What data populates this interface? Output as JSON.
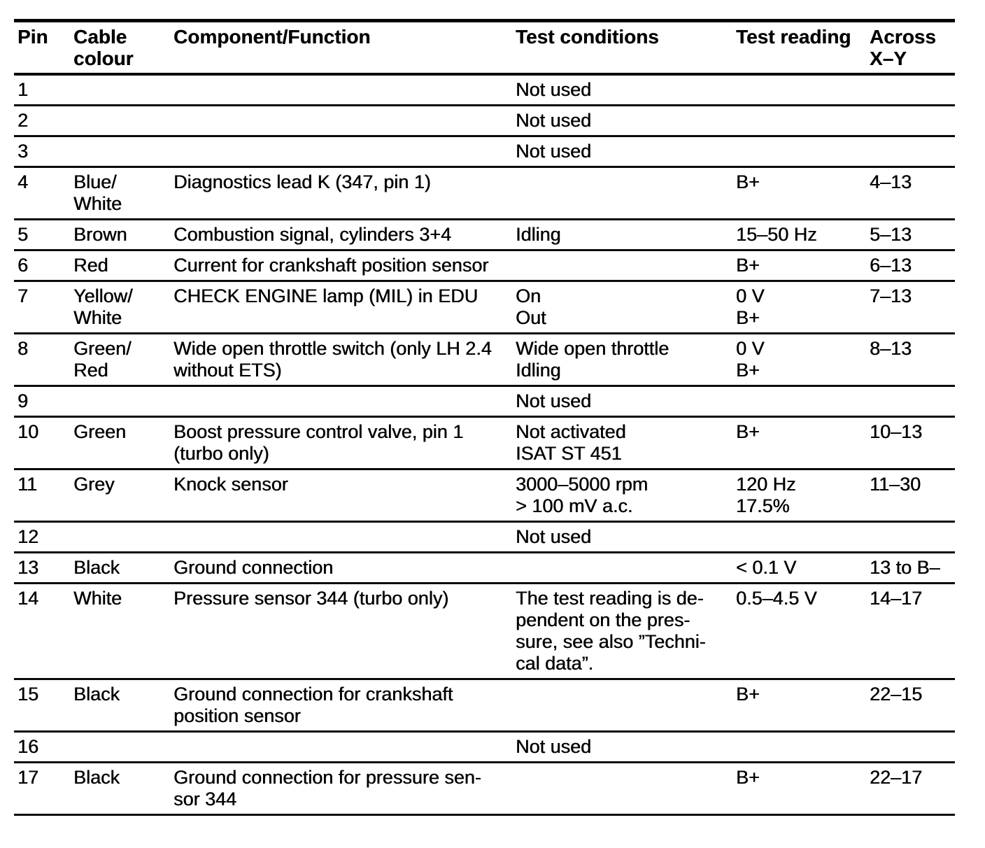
{
  "table": {
    "columns": [
      {
        "label": "Pin"
      },
      {
        "label": "Cable\ncolour"
      },
      {
        "label": "Component/Function"
      },
      {
        "label": "Test conditions"
      },
      {
        "label": "Test reading"
      },
      {
        "label": "Across\nX–Y"
      }
    ],
    "rows": [
      {
        "pin": "1",
        "cable": "",
        "component": "",
        "conditions": "Not used",
        "reading": "",
        "across": ""
      },
      {
        "pin": "2",
        "cable": "",
        "component": "",
        "conditions": "Not used",
        "reading": "",
        "across": ""
      },
      {
        "pin": "3",
        "cable": "",
        "component": "",
        "conditions": "Not used",
        "reading": "",
        "across": ""
      },
      {
        "pin": "4",
        "cable": "Blue/\nWhite",
        "component": "Diagnostics lead K (347, pin 1)",
        "conditions": "",
        "reading": "B+",
        "across": "4–13"
      },
      {
        "pin": "5",
        "cable": "Brown",
        "component": "Combustion signal, cylinders 3+4",
        "conditions": "Idling",
        "reading": "15–50 Hz",
        "across": "5–13"
      },
      {
        "pin": "6",
        "cable": "Red",
        "component": "Current for crankshaft position sensor",
        "conditions": "",
        "reading": "B+",
        "across": "6–13"
      },
      {
        "pin": "7",
        "cable": "Yellow/\nWhite",
        "component": "CHECK ENGINE lamp (MIL) in EDU",
        "conditions": "On\nOut",
        "reading": "0 V\nB+",
        "across": "7–13"
      },
      {
        "pin": "8",
        "cable": "Green/\nRed",
        "component": "Wide open throttle switch (only LH 2.4\nwithout ETS)",
        "conditions": "Wide open throttle\nIdling",
        "reading": "0 V\nB+",
        "across": "8–13"
      },
      {
        "pin": "9",
        "cable": "",
        "component": "",
        "conditions": "Not used",
        "reading": "",
        "across": ""
      },
      {
        "pin": "10",
        "cable": "Green",
        "component": "Boost pressure control valve, pin 1\n(turbo only)",
        "conditions": "Not activated\nISAT ST 451",
        "reading": "B+",
        "across": "10–13"
      },
      {
        "pin": "11",
        "cable": "Grey",
        "component": "Knock sensor",
        "conditions": "3000–5000 rpm\n> 100 mV a.c.",
        "reading": "120 Hz\n17.5%",
        "across": "11–30"
      },
      {
        "pin": "12",
        "cable": "",
        "component": "",
        "conditions": "Not used",
        "reading": "",
        "across": ""
      },
      {
        "pin": "13",
        "cable": "Black",
        "component": "Ground connection",
        "conditions": "",
        "reading": "< 0.1 V",
        "across": "13 to B–"
      },
      {
        "pin": "14",
        "cable": "White",
        "component": "Pressure sensor 344 (turbo only)",
        "conditions": "The test reading is de-\npendent on the pres-\nsure, see also ”Techni-\ncal data”.",
        "reading": "0.5–4.5 V",
        "across": "14–17"
      },
      {
        "pin": "15",
        "cable": "Black",
        "component": "Ground connection for crankshaft\nposition sensor",
        "conditions": "",
        "reading": "B+",
        "across": "22–15"
      },
      {
        "pin": "16",
        "cable": "",
        "component": "",
        "conditions": "Not used",
        "reading": "",
        "across": ""
      },
      {
        "pin": "17",
        "cable": "Black",
        "component": "Ground connection for pressure sen-\nsor 344",
        "conditions": "",
        "reading": "B+",
        "across": "22–17"
      }
    ]
  }
}
